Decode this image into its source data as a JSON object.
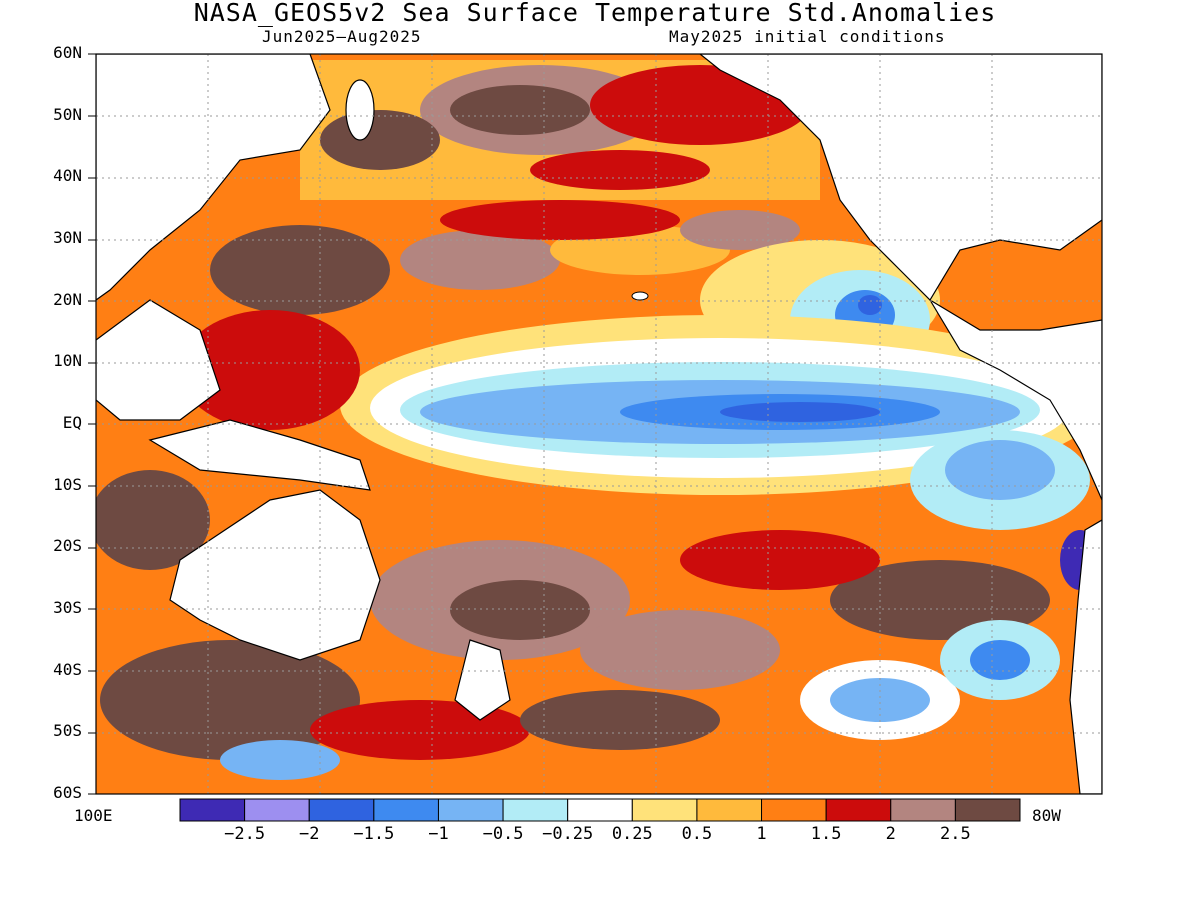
{
  "header": {
    "title": "NASA_GEOS5v2 Sea Surface Temperature Std.Anomalies",
    "period": "Jun2025–Aug2025",
    "initial_conditions": "May2025 initial conditions"
  },
  "map": {
    "lat_labels": [
      "60N",
      "50N",
      "40N",
      "30N",
      "20N",
      "10N",
      "EQ",
      "10S",
      "20S",
      "30S",
      "40S",
      "50S",
      "60S"
    ],
    "lon_left": "100E",
    "lon_right": "80W",
    "land_color": "#ffffff",
    "coast_color": "#000000"
  },
  "colorbar": {
    "colors": [
      "#3e2ab4",
      "#9d8ff0",
      "#2f63e0",
      "#3e8af0",
      "#76b4f4",
      "#b2ecf6",
      "#ffffff",
      "#ffe27a",
      "#ffba3c",
      "#ff7f14",
      "#cc0c0c",
      "#b38580",
      "#6e4a42"
    ],
    "labels": [
      "−2.5",
      "−2",
      "−1.5",
      "−1",
      "−0.5",
      "−0.25",
      "0.25",
      "0.5",
      "1",
      "1.5",
      "2",
      "2.5"
    ]
  }
}
